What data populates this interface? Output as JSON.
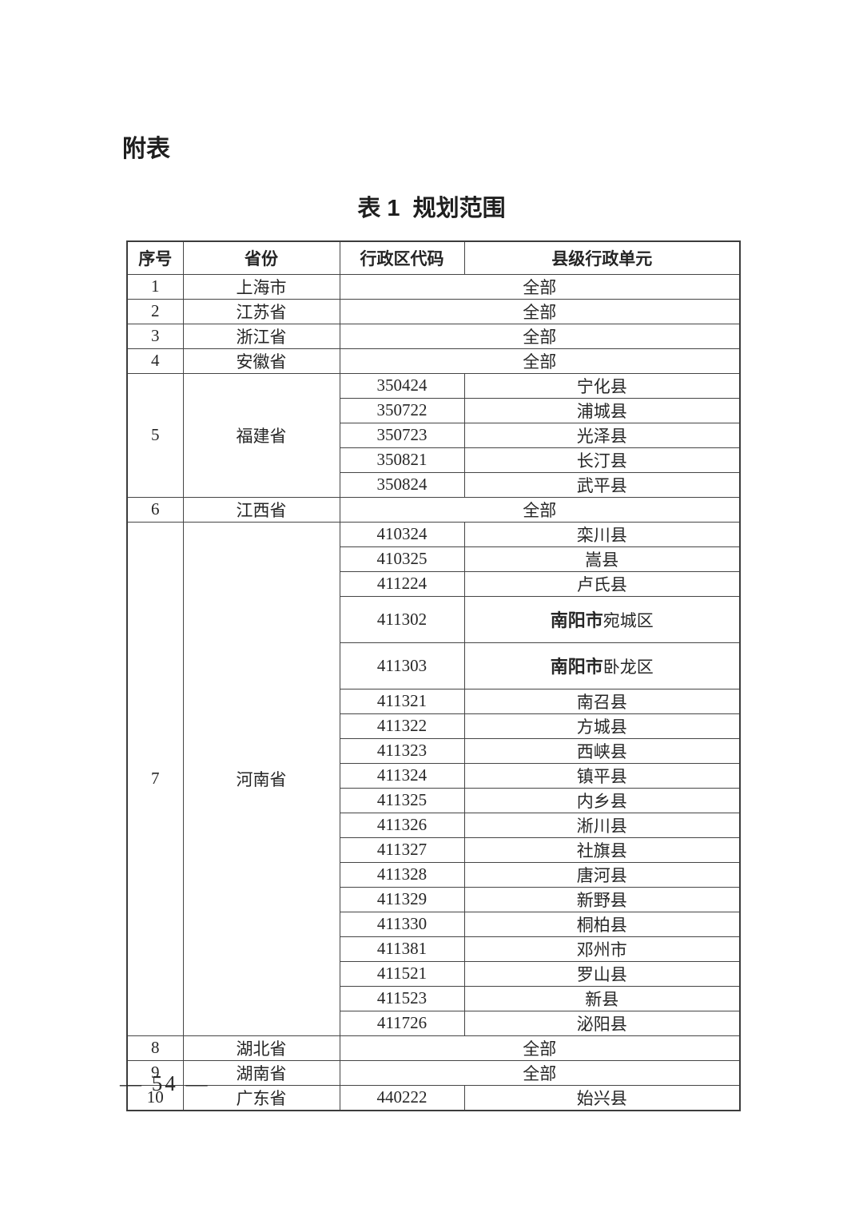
{
  "page": {
    "heading": "附表",
    "table_title": "表 1  规划范围",
    "page_number": "— 54 —"
  },
  "table": {
    "headers": [
      "序号",
      "省份",
      "行政区代码",
      "县级行政单元"
    ],
    "groups": [
      {
        "no": "1",
        "province": "上海市",
        "all": "全部"
      },
      {
        "no": "2",
        "province": "江苏省",
        "all": "全部"
      },
      {
        "no": "3",
        "province": "浙江省",
        "all": "全部"
      },
      {
        "no": "4",
        "province": "安徽省",
        "all": "全部"
      },
      {
        "no": "5",
        "province": "福建省",
        "rows": [
          {
            "code": "350424",
            "county": "宁化县"
          },
          {
            "code": "350722",
            "county": "浦城县"
          },
          {
            "code": "350723",
            "county": "光泽县"
          },
          {
            "code": "350821",
            "county": "长汀县"
          },
          {
            "code": "350824",
            "county": "武平县"
          }
        ]
      },
      {
        "no": "6",
        "province": "江西省",
        "all": "全部"
      },
      {
        "no": "7",
        "province": "河南省",
        "rows": [
          {
            "code": "410324",
            "county": "栾川县"
          },
          {
            "code": "410325",
            "county": "嵩县"
          },
          {
            "code": "411224",
            "county": "卢氏县"
          },
          {
            "code": "411302",
            "prefix": "南阳市",
            "county": "宛城区",
            "tall": true
          },
          {
            "code": "411303",
            "prefix": "南阳市",
            "county": "卧龙区",
            "tall": true
          },
          {
            "code": "411321",
            "county": "南召县"
          },
          {
            "code": "411322",
            "county": "方城县"
          },
          {
            "code": "411323",
            "county": "西峡县"
          },
          {
            "code": "411324",
            "county": "镇平县"
          },
          {
            "code": "411325",
            "county": "内乡县"
          },
          {
            "code": "411326",
            "county": "淅川县"
          },
          {
            "code": "411327",
            "county": "社旗县"
          },
          {
            "code": "411328",
            "county": "唐河县"
          },
          {
            "code": "411329",
            "county": "新野县"
          },
          {
            "code": "411330",
            "county": "桐柏县"
          },
          {
            "code": "411381",
            "county": "邓州市"
          },
          {
            "code": "411521",
            "county": "罗山县"
          },
          {
            "code": "411523",
            "county": "新县"
          },
          {
            "code": "411726",
            "county": "泌阳县"
          }
        ]
      },
      {
        "no": "8",
        "province": "湖北省",
        "all": "全部"
      },
      {
        "no": "9",
        "province": "湖南省",
        "all": "全部"
      },
      {
        "no": "10",
        "province": "广东省",
        "rows": [
          {
            "code": "440222",
            "county": "始兴县"
          }
        ]
      }
    ]
  },
  "colors": {
    "background": "#ffffff",
    "text": "#262626",
    "border": "#454545"
  }
}
